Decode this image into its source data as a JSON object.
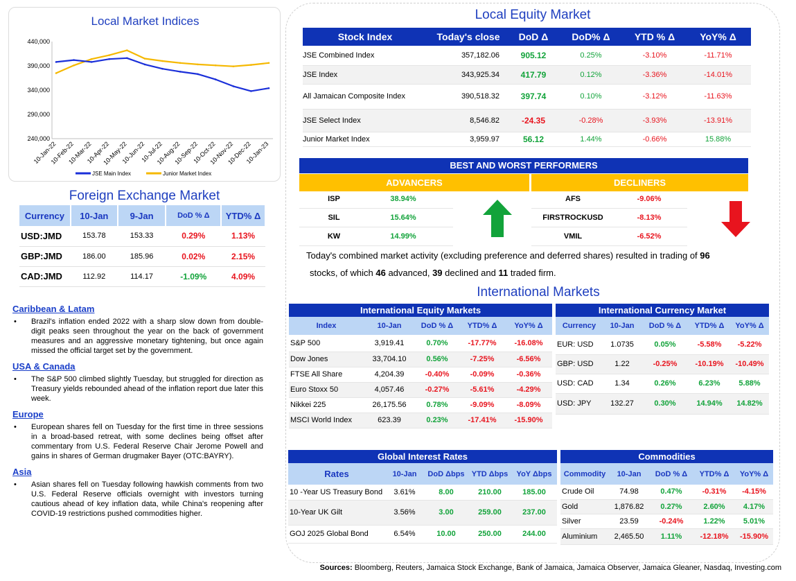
{
  "chart": {
    "title": "Local Market Indices",
    "y_ticks": [
      "440,000",
      "390,000",
      "340,000",
      "290,000",
      "240,000"
    ],
    "x_ticks": [
      "10-Jan-22",
      "10-Feb-22",
      "10-Mar-22",
      "10-Apr-22",
      "10-May-22",
      "10-Jun-22",
      "10-Jul-22",
      "10-Aug-22",
      "10-Sep-22",
      "10-Oct-22",
      "10-Nov-22",
      "10-Dec-22",
      "10-Jan-23"
    ],
    "legend": [
      "JSE Main Index",
      "Junior Market Index"
    ],
    "colors": {
      "main": "#1a2fd9",
      "junior": "#f5b800"
    }
  },
  "chart_data": {
    "type": "line",
    "title": "Local Market Indices",
    "x": [
      "10-Jan-22",
      "10-Feb-22",
      "10-Mar-22",
      "10-Apr-22",
      "10-May-22",
      "10-Jun-22",
      "10-Jul-22",
      "10-Aug-22",
      "10-Sep-22",
      "10-Oct-22",
      "10-Nov-22",
      "10-Dec-22",
      "10-Jan-23"
    ],
    "ylim": [
      240000,
      440000
    ],
    "series": [
      {
        "name": "JSE Main Index",
        "values": [
          398000,
          402000,
          398000,
          404000,
          406000,
          393000,
          384000,
          378000,
          373000,
          362000,
          348000,
          338000,
          344000
        ]
      },
      {
        "name": "Junior Market Index",
        "values": [
          375000,
          391000,
          404000,
          412000,
          422000,
          405000,
          400000,
          396000,
          393000,
          391000,
          389000,
          392000,
          396000
        ]
      }
    ]
  },
  "fx": {
    "title": "Foreign Exchange Market",
    "headers": [
      "Currency",
      "10-Jan",
      "9-Jan",
      "DoD % Δ",
      "YTD% Δ"
    ],
    "rows": [
      {
        "cur": "USD:JMD",
        "a": "153.78",
        "b": "153.33",
        "dod": "0.29%",
        "ytd": "1.13%",
        "dod_c": "neg",
        "ytd_c": "neg"
      },
      {
        "cur": "GBP:JMD",
        "a": "186.00",
        "b": "185.96",
        "dod": "0.02%",
        "ytd": "2.15%",
        "dod_c": "neg",
        "ytd_c": "neg"
      },
      {
        "cur": "CAD:JMD",
        "a": "112.92",
        "b": "114.17",
        "dod": "-1.09%",
        "ytd": "4.09%",
        "dod_c": "pos",
        "ytd_c": "neg"
      }
    ]
  },
  "news": [
    {
      "head": "Caribbean & Latam",
      "text": "Brazil's inflation ended 2022 with a sharp slow down from double-digit peaks seen throughout the year on the back of government measures and an aggressive monetary tightening, but once again missed the official target set by the government."
    },
    {
      "head": "USA & Canada",
      "text": "The S&P 500 climbed slightly Tuesday, but struggled for direction as Treasury yields rebounded ahead of the inflation report due later this week."
    },
    {
      "head": "Europe",
      "text": "European shares fell on Tuesday for the first time in three sessions in a broad-based retreat, with some declines being offset after commentary from U.S. Federal Reserve Chair Jerome Powell and gains in shares of German drugmaker Bayer (OTC:BAYRY)."
    },
    {
      "head": "Asia",
      "text": "Asian shares fell on Tuesday following hawkish comments from two U.S. Federal Reserve officials overnight with investors turning cautious ahead of key inflation data, while China's reopening after COVID-19 restrictions pushed commodities higher."
    }
  ],
  "equity": {
    "title": "Local Equity Market",
    "headers": [
      "Stock Index",
      "Today's close",
      "DoD  Δ",
      "DoD% Δ",
      "YTD % Δ",
      "YoY% Δ"
    ],
    "rows": [
      {
        "name": "JSE Combined Index",
        "close": "357,182.06",
        "dod": "905.12",
        "dodp": "0.25%",
        "ytd": "-3.10%",
        "yoy": "-11.71%",
        "c1": "pos",
        "c2": "pos",
        "c3": "neg",
        "c4": "neg"
      },
      {
        "name": "JSE Index",
        "close": "343,925.34",
        "dod": "417.79",
        "dodp": "0.12%",
        "ytd": "-3.36%",
        "yoy": "-14.01%",
        "c1": "pos",
        "c2": "pos",
        "c3": "neg",
        "c4": "neg"
      },
      {
        "name": "All Jamaican Composite Index",
        "close": "390,518.32",
        "dod": "397.74",
        "dodp": "0.10%",
        "ytd": "-3.12%",
        "yoy": "-11.63%",
        "c1": "pos",
        "c2": "pos",
        "c3": "neg",
        "c4": "neg"
      },
      {
        "name": "JSE Select Index",
        "close": "8,546.82",
        "dod": "-24.35",
        "dodp": "-0.28%",
        "ytd": "-3.93%",
        "yoy": "-13.91%",
        "c1": "neg",
        "c2": "neg",
        "c3": "neg",
        "c4": "neg"
      },
      {
        "name": "Junior Market Index",
        "close": "3,959.97",
        "dod": "56.12",
        "dodp": "1.44%",
        "ytd": "-0.66%",
        "yoy": "15.88%",
        "c1": "pos",
        "c2": "pos",
        "c3": "neg",
        "c4": "pos"
      }
    ]
  },
  "performers": {
    "title": "BEST AND WORST PERFORMERS",
    "adv_label": "ADVANCERS",
    "dec_label": "DECLINERS",
    "advancers": [
      {
        "sym": "ISP",
        "pct": "38.94%"
      },
      {
        "sym": "SIL",
        "pct": "15.64%"
      },
      {
        "sym": "KW",
        "pct": "14.99%"
      }
    ],
    "decliners": [
      {
        "sym": "AFS",
        "pct": "-9.06%"
      },
      {
        "sym": "FIRSTROCKUSD",
        "pct": "-8.13%"
      },
      {
        "sym": "VMIL",
        "pct": "-6.52%"
      }
    ]
  },
  "summary": {
    "p1": "Today's combined market activity (excluding preference and deferred shares) resulted in trading of ",
    "n1": "96",
    "p2": "stocks, of which ",
    "n2": "46",
    "p3": " advanced, ",
    "n3": "39",
    "p4": " declined and ",
    "n4": "11",
    "p5": " traded firm."
  },
  "intl": {
    "title": "International Markets",
    "equity": {
      "title": "International Equity Markets",
      "headers": [
        "Index",
        "10-Jan",
        "DoD % Δ",
        "YTD% Δ",
        "YoY% Δ"
      ],
      "rows": [
        {
          "n": "S&P 500",
          "v": "3,919.41",
          "d": "0.70%",
          "y": "-17.77%",
          "yy": "-16.08%",
          "c1": "pos",
          "c2": "neg",
          "c3": "neg"
        },
        {
          "n": "Dow Jones",
          "v": "33,704.10",
          "d": "0.56%",
          "y": "-7.25%",
          "yy": "-6.56%",
          "c1": "pos",
          "c2": "neg",
          "c3": "neg"
        },
        {
          "n": "FTSE All Share",
          "v": "4,204.39",
          "d": "-0.40%",
          "y": "-0.09%",
          "yy": "-0.36%",
          "c1": "neg",
          "c2": "neg",
          "c3": "neg"
        },
        {
          "n": "Euro Stoxx 50",
          "v": "4,057.46",
          "d": "-0.27%",
          "y": "-5.61%",
          "yy": "-4.29%",
          "c1": "neg",
          "c2": "neg",
          "c3": "neg"
        },
        {
          "n": "Nikkei 225",
          "v": "26,175.56",
          "d": "0.78%",
          "y": "-9.09%",
          "yy": "-8.09%",
          "c1": "pos",
          "c2": "neg",
          "c3": "neg"
        },
        {
          "n": "MSCI World Index",
          "v": "623.39",
          "d": "0.23%",
          "y": "-17.41%",
          "yy": "-15.90%",
          "c1": "pos",
          "c2": "neg",
          "c3": "neg"
        }
      ]
    },
    "currency": {
      "title": "International Currency Market",
      "headers": [
        "Currency",
        "10-Jan",
        "DoD % Δ",
        "YTD% Δ",
        "YoY% Δ"
      ],
      "rows": [
        {
          "n": "EUR: USD",
          "v": "1.0735",
          "d": "0.05%",
          "y": "-5.58%",
          "yy": "-5.22%",
          "c1": "pos",
          "c2": "neg",
          "c3": "neg"
        },
        {
          "n": "GBP: USD",
          "v": "1.22",
          "d": "-0.25%",
          "y": "-10.19%",
          "yy": "-10.49%",
          "c1": "neg",
          "c2": "neg",
          "c3": "neg"
        },
        {
          "n": "USD: CAD",
          "v": "1.34",
          "d": "0.26%",
          "y": "6.23%",
          "yy": "5.88%",
          "c1": "pos",
          "c2": "pos",
          "c3": "pos"
        },
        {
          "n": "USD: JPY",
          "v": "132.27",
          "d": "0.30%",
          "y": "14.94%",
          "yy": "14.82%",
          "c1": "pos",
          "c2": "pos",
          "c3": "pos"
        }
      ]
    },
    "rates": {
      "title": "Global Interest Rates",
      "headers": [
        "Rates",
        "10-Jan",
        "DoD Δbps",
        "YTD Δbps",
        "YoY Δbps"
      ],
      "rows": [
        {
          "n": "10 -Year US Treasury Bond",
          "v": "3.61%",
          "d": "8.00",
          "y": "210.00",
          "yy": "185.00"
        },
        {
          "n": "10-Year UK Gilt",
          "v": "3.56%",
          "d": "3.00",
          "y": "259.00",
          "yy": "237.00"
        },
        {
          "n": "GOJ 2025 Global Bond",
          "v": "6.54%",
          "d": "10.00",
          "y": "250.00",
          "yy": "244.00"
        }
      ]
    },
    "commodities": {
      "title": "Commodities",
      "headers": [
        "Commodity",
        "10-Jan",
        "DoD % Δ",
        "YTD% Δ",
        "YoY% Δ"
      ],
      "rows": [
        {
          "n": "Crude Oil",
          "v": "74.98",
          "d": "0.47%",
          "y": "-0.31%",
          "yy": "-4.15%",
          "c1": "pos",
          "c2": "neg",
          "c3": "neg"
        },
        {
          "n": "Gold",
          "v": "1,876.82",
          "d": "0.27%",
          "y": "2.60%",
          "yy": "4.17%",
          "c1": "pos",
          "c2": "pos",
          "c3": "pos"
        },
        {
          "n": "Silver",
          "v": "23.59",
          "d": "-0.24%",
          "y": "1.22%",
          "yy": "5.01%",
          "c1": "neg",
          "c2": "pos",
          "c3": "pos"
        },
        {
          "n": "Aluminium",
          "v": "2,465.50",
          "d": "1.11%",
          "y": "-12.18%",
          "yy": "-15.90%",
          "c1": "pos",
          "c2": "neg",
          "c3": "neg"
        }
      ]
    }
  },
  "sources": {
    "label": "Sources:",
    "text": " Bloomberg, Reuters, Jamaica Stock Exchange, Bank of Jamaica, Jamaica Observer, Jamaica Gleaner, Nasdaq, Investing.com"
  }
}
